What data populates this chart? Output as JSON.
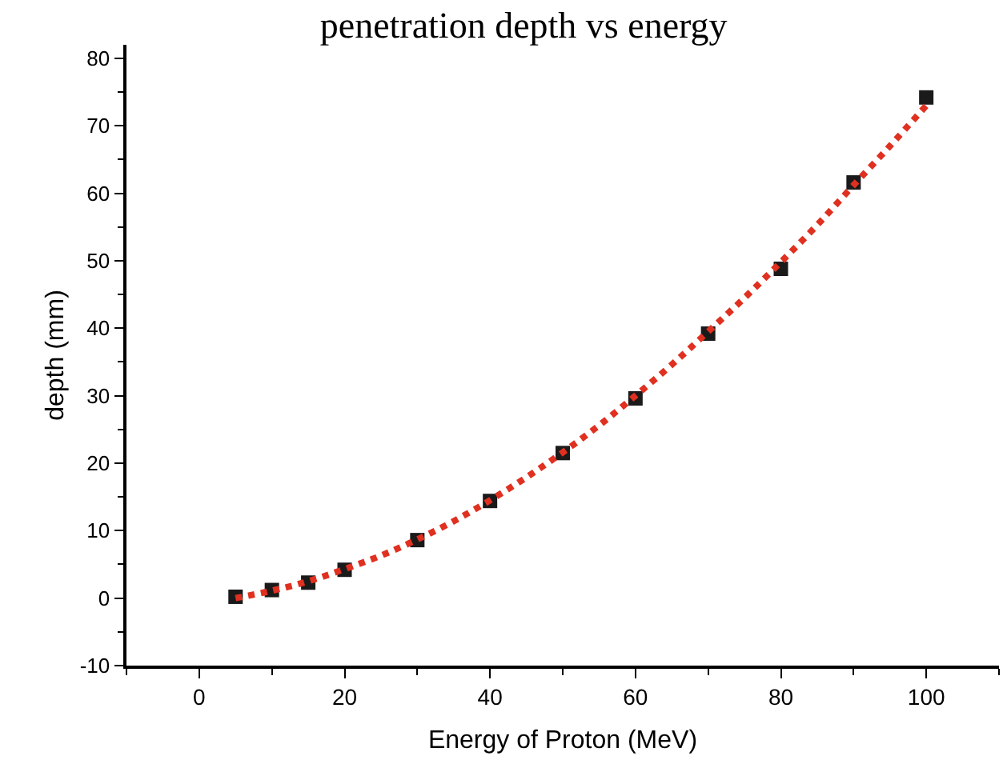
{
  "chart_data": {
    "type": "scatter",
    "title": "penetration depth vs energy",
    "xlabel": "Energy of Proton (MeV)",
    "ylabel": "depth (mm)",
    "xlim": [
      -10,
      110
    ],
    "xticks": [
      0,
      20,
      40,
      60,
      80,
      100
    ],
    "ylim": [
      -10,
      82
    ],
    "yticks": [
      -10,
      0,
      10,
      20,
      30,
      40,
      50,
      60,
      70,
      80
    ],
    "grid": false,
    "marker": "square",
    "series": [
      {
        "color": "#1a1a1a",
        "x": [
          5,
          10,
          15,
          20,
          30,
          40,
          50,
          60,
          70,
          80,
          90,
          100
        ],
        "values": [
          0.2,
          1.2,
          2.3,
          4.2,
          8.6,
          14.4,
          21.5,
          29.6,
          39.2,
          48.8,
          61.6,
          74.2
        ]
      },
      {
        "type": "line",
        "color": "#e03020",
        "marker": "none",
        "line_style": "dotted",
        "x": [
          5,
          10,
          15,
          20,
          25,
          30,
          35,
          40,
          45,
          50,
          55,
          60,
          65,
          70,
          75,
          80,
          85,
          90,
          95,
          100
        ],
        "values": [
          0,
          1.1,
          2.5,
          4.3,
          6.3,
          8.7,
          11.4,
          14.5,
          17.9,
          21.6,
          25.6,
          30.0,
          34.6,
          39.5,
          44.5,
          49.8,
          55.3,
          61.2,
          67.0,
          73.0
        ]
      }
    ]
  }
}
